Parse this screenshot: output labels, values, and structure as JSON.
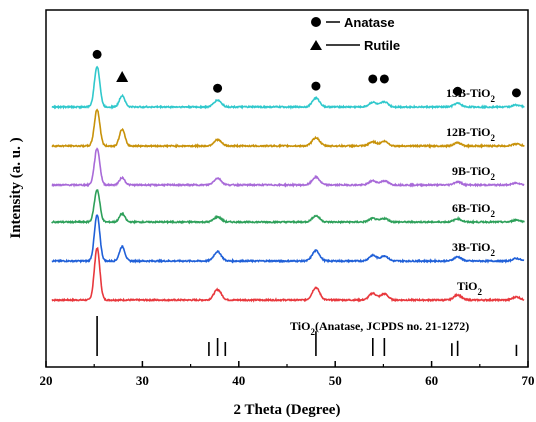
{
  "chart_data": {
    "type": "line",
    "xlabel": "2 Theta (Degree)",
    "ylabel": "Intensity (a. u. )",
    "xlim": [
      20,
      70
    ],
    "x_ticks": [
      20,
      30,
      40,
      50,
      60,
      70
    ],
    "y_ticks_shown": false,
    "grid": false,
    "legend": {
      "placement": "top-right",
      "entries": [
        {
          "marker": "circle",
          "label": "Anatase"
        },
        {
          "marker": "triangle",
          "label": "Rutile"
        }
      ]
    },
    "series": [
      {
        "name": "TiO",
        "subscript": "2",
        "color": "#e8383d",
        "baseline": 0.0,
        "peaks": [
          [
            25.3,
            1.0
          ],
          [
            37.8,
            0.2
          ],
          [
            48.0,
            0.24
          ],
          [
            53.9,
            0.13
          ],
          [
            55.1,
            0.12
          ],
          [
            62.7,
            0.1
          ],
          [
            68.8,
            0.06
          ]
        ]
      },
      {
        "name": "3B-TiO",
        "subscript": "2",
        "color": "#2060d8",
        "baseline": 1.0,
        "peaks": [
          [
            25.3,
            0.88
          ],
          [
            27.9,
            0.28
          ],
          [
            37.8,
            0.18
          ],
          [
            48.0,
            0.2
          ],
          [
            53.9,
            0.11
          ],
          [
            55.1,
            0.1
          ],
          [
            62.7,
            0.08
          ],
          [
            68.8,
            0.05
          ]
        ]
      },
      {
        "name": "6B-TiO",
        "subscript": "2",
        "color": "#2ea05a",
        "baseline": 2.0,
        "peaks": [
          [
            25.3,
            0.62
          ],
          [
            27.9,
            0.16
          ],
          [
            37.8,
            0.1
          ],
          [
            48.0,
            0.12
          ],
          [
            53.9,
            0.07
          ],
          [
            55.1,
            0.07
          ],
          [
            62.7,
            0.06
          ],
          [
            68.8,
            0.04
          ]
        ]
      },
      {
        "name": "9B-TiO",
        "subscript": "2",
        "color": "#a86ad8",
        "baseline": 2.95,
        "peaks": [
          [
            25.3,
            0.7
          ],
          [
            27.9,
            0.14
          ],
          [
            37.8,
            0.13
          ],
          [
            48.0,
            0.15
          ],
          [
            53.9,
            0.08
          ],
          [
            55.1,
            0.08
          ],
          [
            62.7,
            0.06
          ],
          [
            68.8,
            0.04
          ]
        ]
      },
      {
        "name": "12B-TiO",
        "subscript": "2",
        "color": "#c8920a",
        "baseline": 3.95,
        "peaks": [
          [
            25.3,
            0.7
          ],
          [
            27.9,
            0.32
          ],
          [
            37.8,
            0.12
          ],
          [
            48.0,
            0.16
          ],
          [
            53.9,
            0.08
          ],
          [
            55.1,
            0.09
          ],
          [
            62.7,
            0.06
          ],
          [
            68.8,
            0.04
          ]
        ]
      },
      {
        "name": "15B-TiO",
        "subscript": "2",
        "color": "#30c8cc",
        "baseline": 4.95,
        "peaks": [
          [
            25.3,
            0.78
          ],
          [
            27.9,
            0.22
          ],
          [
            37.8,
            0.13
          ],
          [
            48.0,
            0.17
          ],
          [
            53.9,
            0.09
          ],
          [
            55.1,
            0.1
          ],
          [
            62.7,
            0.07
          ],
          [
            68.8,
            0.04
          ]
        ]
      }
    ],
    "reference": {
      "label_prefix": "TiO",
      "label_sub": "2",
      "label_suffix": "(Anatase, JCPDS no. 21-1272)",
      "lines": [
        [
          25.3,
          1.0
        ],
        [
          36.9,
          0.35
        ],
        [
          37.8,
          0.45
        ],
        [
          38.6,
          0.35
        ],
        [
          48.0,
          0.62
        ],
        [
          53.9,
          0.45
        ],
        [
          55.1,
          0.45
        ],
        [
          62.1,
          0.32
        ],
        [
          62.7,
          0.38
        ],
        [
          68.8,
          0.28
        ]
      ]
    },
    "anatase_markers_x": [
      25.3,
      37.8,
      48.0,
      53.9,
      55.1,
      62.7,
      68.8
    ],
    "rutile_markers_x": [
      27.9
    ]
  }
}
